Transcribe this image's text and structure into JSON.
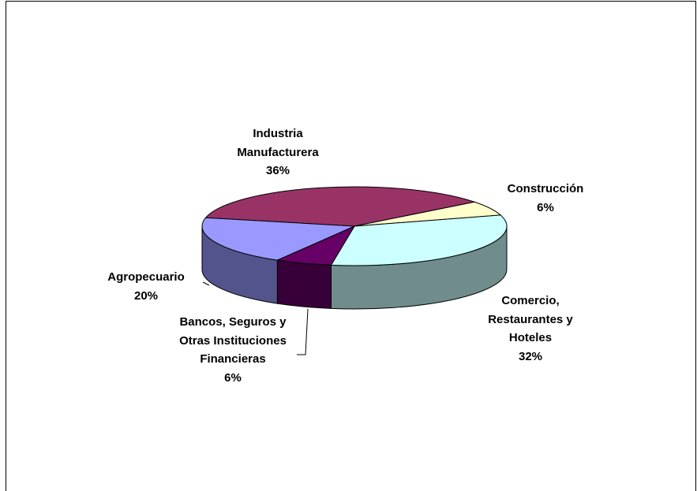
{
  "chart_data": {
    "type": "pie3d",
    "categories": [
      "Industria Manufacturera",
      "Construcción",
      "Comercio, Restaurantes y Hoteles",
      "Bancos, Seguros y Otras Instituciones Financieras",
      "Agropecuario"
    ],
    "values": [
      36,
      6,
      32,
      6,
      20
    ],
    "value_labels": [
      "36%",
      "6%",
      "32%",
      "6%",
      "20%"
    ],
    "colors": [
      "#993366",
      "#FFFFCC",
      "#CCFFFF",
      "#660066",
      "#9999FF"
    ]
  }
}
